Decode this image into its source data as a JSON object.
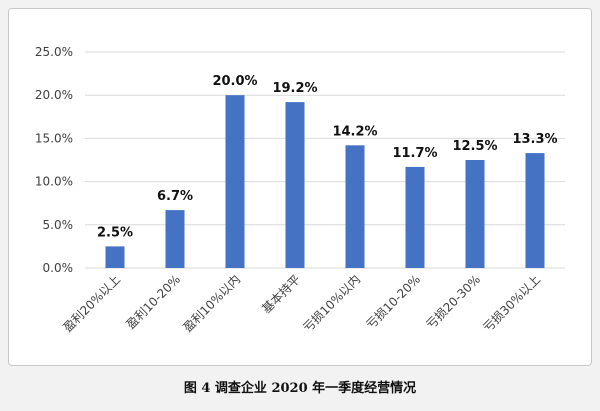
{
  "caption": "图 4 调查企业 2020 年一季度经营情况",
  "colors": {
    "bar": "#4472C4",
    "grid": "#d9d9d9",
    "text": "#404040",
    "label": "#111111"
  },
  "chart_data": {
    "type": "bar",
    "categories": [
      "盈利20%以上",
      "盈利10-20%",
      "盈利10%以内",
      "基本持平",
      "亏损10%以内",
      "亏损10-20%",
      "亏损20-30%",
      "亏损30%以上"
    ],
    "values": [
      2.5,
      6.7,
      20.0,
      19.2,
      14.2,
      11.7,
      12.5,
      13.3
    ],
    "value_labels": [
      "2.5%",
      "6.7%",
      "20.0%",
      "19.2%",
      "14.2%",
      "11.7%",
      "12.5%",
      "13.3%"
    ],
    "y_ticks": [
      "0.0%",
      "5.0%",
      "10.0%",
      "15.0%",
      "20.0%",
      "25.0%"
    ],
    "ylim": [
      0,
      25
    ],
    "grid": true,
    "title": "",
    "xlabel": "",
    "ylabel": ""
  }
}
